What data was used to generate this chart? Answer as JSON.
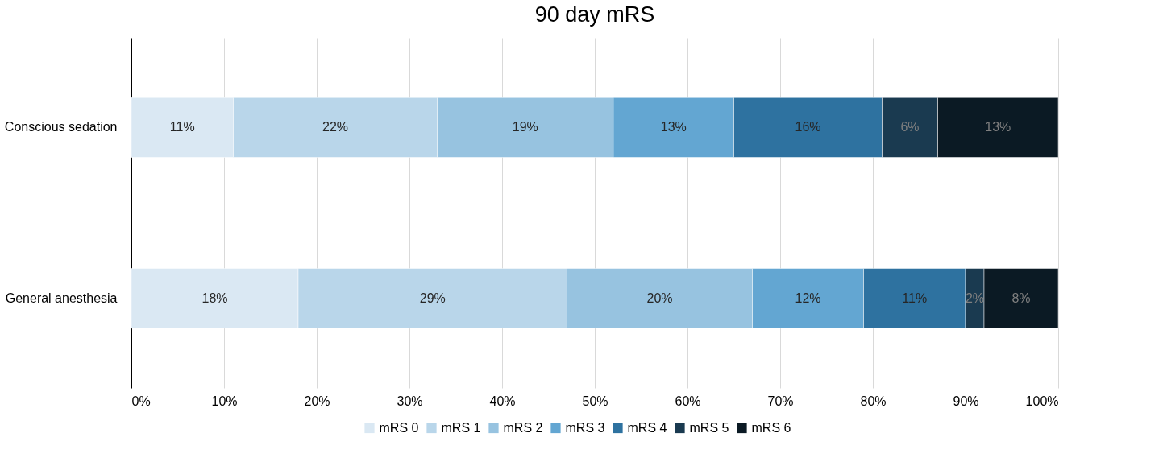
{
  "chart_data": {
    "type": "bar",
    "orientation": "horizontal",
    "stacked": true,
    "title": "90 day mRS",
    "categories": [
      "Conscious sedation",
      "General anesthesia"
    ],
    "series": [
      {
        "name": "mRS 0",
        "color": "#dae8f3",
        "values": [
          11,
          18
        ],
        "value_labels": [
          "11%",
          "18%"
        ]
      },
      {
        "name": "mRS 1",
        "color": "#b9d6ea",
        "values": [
          22,
          29
        ],
        "value_labels": [
          "22%",
          "29%"
        ]
      },
      {
        "name": "mRS 2",
        "color": "#97c3e0",
        "values": [
          19,
          20
        ],
        "value_labels": [
          "19%",
          "20%"
        ]
      },
      {
        "name": "mRS 3",
        "color": "#63a6d2",
        "values": [
          13,
          12
        ],
        "value_labels": [
          "13%",
          "12%"
        ]
      },
      {
        "name": "mRS 4",
        "color": "#2e72a0",
        "values": [
          16,
          11
        ],
        "value_labels": [
          "16%",
          "11%"
        ]
      },
      {
        "name": "mRS 5",
        "color": "#1a3a50",
        "values": [
          6,
          2
        ],
        "value_labels": [
          "6%",
          "2%"
        ]
      },
      {
        "name": "mRS 6",
        "color": "#0b1a24",
        "values": [
          13,
          8
        ],
        "value_labels": [
          "13%",
          "8%"
        ]
      }
    ],
    "xlim": [
      0,
      100
    ],
    "xticks": [
      {
        "value": 0,
        "label": "0%"
      },
      {
        "value": 10,
        "label": "10%"
      },
      {
        "value": 20,
        "label": "20%"
      },
      {
        "value": 30,
        "label": "30%"
      },
      {
        "value": 40,
        "label": "40%"
      },
      {
        "value": 50,
        "label": "50%"
      },
      {
        "value": 60,
        "label": "60%"
      },
      {
        "value": 70,
        "label": "70%"
      },
      {
        "value": 80,
        "label": "80%"
      },
      {
        "value": 90,
        "label": "90%"
      },
      {
        "value": 100,
        "label": "100%"
      }
    ],
    "grid": "x",
    "legend": "bottom"
  }
}
